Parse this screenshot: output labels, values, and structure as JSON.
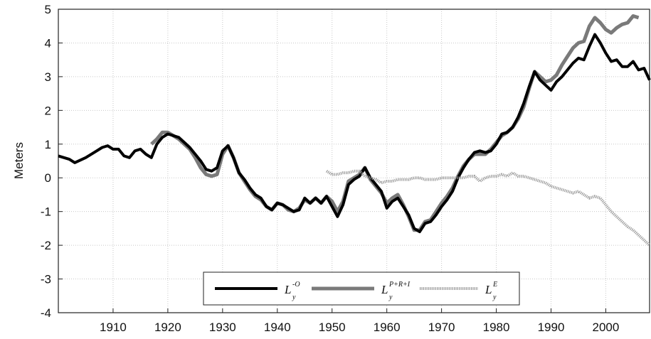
{
  "chart_data": {
    "type": "line",
    "title": "",
    "xlabel": "",
    "ylabel": "Meters",
    "xlim": [
      1900,
      2008
    ],
    "ylim": [
      -4,
      5
    ],
    "xticks": [
      1910,
      1920,
      1930,
      1940,
      1950,
      1960,
      1970,
      1980,
      1990,
      2000
    ],
    "xtick_labels": [
      "1910",
      "1920",
      "1930",
      "1940",
      "1950",
      "1960",
      "1970",
      "1980",
      "1990",
      "2000"
    ],
    "yticks": [
      -4,
      -3,
      -2,
      -1,
      0,
      1,
      2,
      3,
      4,
      5
    ],
    "ytick_labels": [
      "-4",
      "-3",
      "-2",
      "-1",
      "0",
      "1",
      "2",
      "3",
      "4",
      "5"
    ],
    "grid": true,
    "legend": {
      "placement": "bottom-center",
      "entries": [
        {
          "base": "L",
          "sup": "-O",
          "sub": "y"
        },
        {
          "base": "L",
          "sup": "P+R+I",
          "sub": "y"
        },
        {
          "base": "L",
          "sup": "E",
          "sub": "y"
        }
      ]
    },
    "series": [
      {
        "color": "#000000",
        "style": "solid",
        "x": [
          1900,
          1902,
          1903,
          1905,
          1907,
          1908,
          1909,
          1910,
          1911,
          1912,
          1913,
          1914,
          1915,
          1916,
          1917,
          1918,
          1919,
          1920,
          1921,
          1922,
          1923,
          1924,
          1925,
          1926,
          1927,
          1928,
          1929,
          1930,
          1931,
          1932,
          1933,
          1934,
          1935,
          1936,
          1937,
          1938,
          1939,
          1940,
          1941,
          1942,
          1943,
          1944,
          1945,
          1946,
          1947,
          1948,
          1949,
          1950,
          1951,
          1952,
          1953,
          1954,
          1955,
          1956,
          1957,
          1958,
          1959,
          1960,
          1961,
          1962,
          1963,
          1964,
          1965,
          1966,
          1967,
          1968,
          1969,
          1970,
          1971,
          1972,
          1973,
          1974,
          1975,
          1976,
          1977,
          1978,
          1979,
          1980,
          1981,
          1982,
          1983,
          1984,
          1985,
          1986,
          1987,
          1988,
          1989,
          1990,
          1991,
          1992,
          1993,
          1994,
          1995,
          1996,
          1997,
          1998,
          1999,
          2000,
          2001,
          2002,
          2003,
          2004,
          2005,
          2006,
          2007,
          2008
        ],
        "y": [
          0.65,
          0.55,
          0.45,
          0.6,
          0.8,
          0.9,
          0.95,
          0.85,
          0.85,
          0.65,
          0.6,
          0.8,
          0.85,
          0.7,
          0.6,
          1.0,
          1.2,
          1.3,
          1.25,
          1.2,
          1.05,
          0.9,
          0.7,
          0.5,
          0.25,
          0.2,
          0.3,
          0.8,
          0.95,
          0.6,
          0.15,
          -0.05,
          -0.3,
          -0.5,
          -0.6,
          -0.85,
          -0.95,
          -0.75,
          -0.8,
          -0.9,
          -1.0,
          -0.95,
          -0.6,
          -0.75,
          -0.6,
          -0.75,
          -0.55,
          -0.85,
          -1.15,
          -0.8,
          -0.2,
          -0.05,
          0.05,
          0.3,
          0.0,
          -0.2,
          -0.4,
          -0.9,
          -0.7,
          -0.6,
          -0.85,
          -1.1,
          -1.5,
          -1.6,
          -1.35,
          -1.3,
          -1.1,
          -0.85,
          -0.65,
          -0.4,
          0.0,
          0.3,
          0.55,
          0.75,
          0.8,
          0.75,
          0.8,
          1.0,
          1.3,
          1.35,
          1.5,
          1.8,
          2.2,
          2.7,
          3.15,
          2.9,
          2.75,
          2.6,
          2.85,
          3.0,
          3.2,
          3.4,
          3.55,
          3.5,
          3.9,
          4.25,
          4.0,
          3.7,
          3.45,
          3.5,
          3.3,
          3.3,
          3.45,
          3.2,
          3.25,
          2.9
        ]
      },
      {
        "color": "#7a7a7a",
        "style": "solid",
        "x": [
          1917,
          1918,
          1919,
          1920,
          1921,
          1922,
          1923,
          1924,
          1925,
          1926,
          1927,
          1928,
          1929,
          1930,
          1931,
          1932,
          1933,
          1934,
          1935,
          1936,
          1937,
          1938,
          1939,
          1940,
          1941,
          1942,
          1943,
          1944,
          1945,
          1946,
          1947,
          1948,
          1949,
          1950,
          1951,
          1952,
          1953,
          1954,
          1955,
          1956,
          1957,
          1958,
          1959,
          1960,
          1961,
          1962,
          1963,
          1964,
          1965,
          1966,
          1967,
          1968,
          1969,
          1970,
          1971,
          1972,
          1973,
          1974,
          1975,
          1976,
          1977,
          1978,
          1979,
          1980,
          1981,
          1982,
          1983,
          1984,
          1985,
          1986,
          1987,
          1988,
          1989,
          1990,
          1991,
          1992,
          1993,
          1994,
          1995,
          1996,
          1997,
          1998,
          1999,
          2000,
          2001,
          2002,
          2003,
          2004,
          2005,
          2006
        ],
        "y": [
          1.0,
          1.15,
          1.35,
          1.35,
          1.25,
          1.15,
          1.0,
          0.85,
          0.6,
          0.3,
          0.1,
          0.05,
          0.1,
          0.7,
          0.95,
          0.6,
          0.15,
          -0.1,
          -0.35,
          -0.55,
          -0.65,
          -0.85,
          -0.95,
          -0.75,
          -0.8,
          -0.95,
          -1.0,
          -0.9,
          -0.65,
          -0.75,
          -0.6,
          -0.75,
          -0.55,
          -0.7,
          -1.0,
          -0.7,
          -0.1,
          0.0,
          0.1,
          0.3,
          -0.05,
          -0.25,
          -0.45,
          -0.75,
          -0.6,
          -0.5,
          -0.8,
          -1.15,
          -1.55,
          -1.55,
          -1.3,
          -1.25,
          -1.0,
          -0.75,
          -0.55,
          -0.3,
          0.05,
          0.35,
          0.55,
          0.7,
          0.7,
          0.7,
          0.85,
          1.05,
          1.25,
          1.35,
          1.5,
          1.75,
          2.1,
          2.65,
          3.15,
          3.0,
          2.85,
          2.9,
          3.05,
          3.35,
          3.6,
          3.85,
          4.0,
          4.05,
          4.5,
          4.75,
          4.6,
          4.4,
          4.3,
          4.45,
          4.55,
          4.6,
          4.8,
          4.75
        ]
      },
      {
        "color": "#9a9a9a",
        "style": "dotted",
        "x": [
          1949,
          1950,
          1951,
          1952,
          1953,
          1954,
          1955,
          1956,
          1957,
          1958,
          1959,
          1960,
          1961,
          1962,
          1963,
          1964,
          1965,
          1966,
          1967,
          1968,
          1969,
          1970,
          1971,
          1972,
          1973,
          1974,
          1975,
          1976,
          1977,
          1978,
          1979,
          1980,
          1981,
          1982,
          1983,
          1984,
          1985,
          1986,
          1987,
          1988,
          1989,
          1990,
          1991,
          1992,
          1993,
          1994,
          1995,
          1996,
          1997,
          1998,
          1999,
          2000,
          2001,
          2002,
          2003,
          2004,
          2005,
          2006,
          2007,
          2008
        ],
        "y": [
          0.2,
          0.1,
          0.1,
          0.15,
          0.15,
          0.2,
          0.2,
          0.05,
          0.0,
          -0.05,
          -0.15,
          -0.1,
          -0.1,
          -0.05,
          -0.05,
          -0.05,
          0.0,
          0.0,
          -0.05,
          -0.05,
          -0.05,
          0.0,
          0.0,
          0.0,
          0.0,
          0.0,
          0.05,
          0.05,
          -0.1,
          0.0,
          0.05,
          0.05,
          0.1,
          0.05,
          0.15,
          0.05,
          0.05,
          0.0,
          -0.05,
          -0.1,
          -0.15,
          -0.25,
          -0.3,
          -0.35,
          -0.4,
          -0.45,
          -0.4,
          -0.5,
          -0.6,
          -0.55,
          -0.6,
          -0.8,
          -1.0,
          -1.15,
          -1.3,
          -1.45,
          -1.55,
          -1.7,
          -1.85,
          -2.0
        ]
      }
    ]
  }
}
